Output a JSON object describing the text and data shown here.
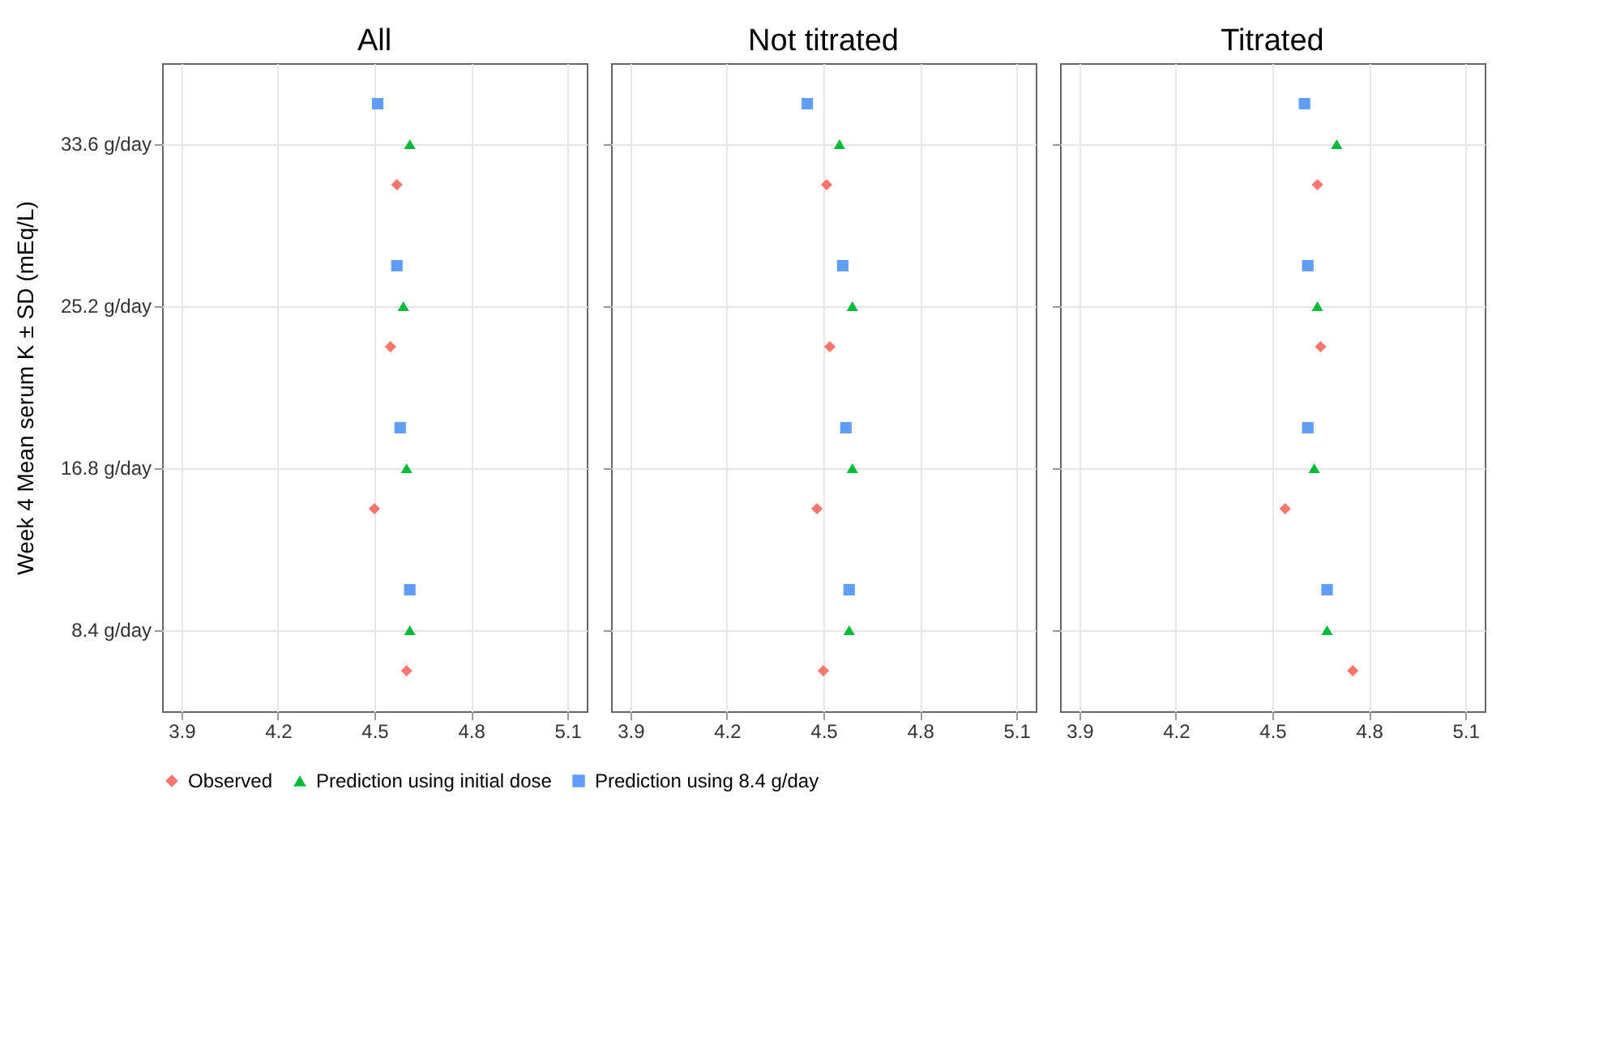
{
  "chart_data": [
    {
      "type": "scatter",
      "title": "All",
      "ylabel": "Week 4 Mean serum K ± SD (mEq/L)",
      "orientation": "horizontal",
      "categories": [
        "33.6 g/day",
        "25.2 g/day",
        "16.8 g/day",
        "8.4 g/day"
      ],
      "xlim": [
        3.84,
        5.16
      ],
      "xticks": [
        3.9,
        4.2,
        4.5,
        4.8,
        5.1
      ],
      "grid": true,
      "legend": "bottom",
      "series": [
        {
          "name": "Observed",
          "color": "#f8766d",
          "marker": "diamond",
          "values": [
            4.57,
            4.55,
            4.5,
            4.6
          ]
        },
        {
          "name": "Prediction using initial dose",
          "color": "#00ba38",
          "marker": "triangle",
          "values": [
            4.61,
            4.59,
            4.6,
            4.61
          ]
        },
        {
          "name": "Prediction using 8.4 g/day",
          "color": "#619cff",
          "marker": "square",
          "values": [
            4.51,
            4.57,
            4.58,
            4.61
          ]
        }
      ]
    },
    {
      "type": "scatter",
      "title": "Not titrated",
      "orientation": "horizontal",
      "tick_labels": "x",
      "categories": [
        "33.6 g/day",
        "25.2 g/day",
        "16.8 g/day",
        "8.4 g/day"
      ],
      "xlim": [
        3.84,
        5.16
      ],
      "xticks": [
        3.9,
        4.2,
        4.5,
        4.8,
        5.1
      ],
      "grid": true,
      "series": [
        {
          "name": "Observed",
          "color": "#f8766d",
          "marker": "diamond",
          "values": [
            4.51,
            4.52,
            4.48,
            4.5
          ]
        },
        {
          "name": "Prediction using initial dose",
          "color": "#00ba38",
          "marker": "triangle",
          "values": [
            4.55,
            4.59,
            4.59,
            4.58
          ]
        },
        {
          "name": "Prediction using 8.4 g/day",
          "color": "#619cff",
          "marker": "square",
          "values": [
            4.45,
            4.56,
            4.57,
            4.58
          ]
        }
      ]
    },
    {
      "type": "scatter",
      "title": "Titrated",
      "orientation": "horizontal",
      "tick_labels": "x",
      "categories": [
        "33.6 g/day",
        "25.2 g/day",
        "16.8 g/day",
        "8.4 g/day"
      ],
      "xlim": [
        3.84,
        5.16
      ],
      "xticks": [
        3.9,
        4.2,
        4.5,
        4.8,
        5.1
      ],
      "grid": true,
      "series": [
        {
          "name": "Observed",
          "color": "#f8766d",
          "marker": "diamond",
          "values": [
            4.64,
            4.65,
            4.54,
            4.75
          ]
        },
        {
          "name": "Prediction using initial dose",
          "color": "#00ba38",
          "marker": "triangle",
          "values": [
            4.7,
            4.64,
            4.63,
            4.67
          ]
        },
        {
          "name": "Prediction using 8.4 g/day",
          "color": "#619cff",
          "marker": "square",
          "values": [
            4.6,
            4.61,
            4.61,
            4.67
          ]
        }
      ]
    }
  ]
}
